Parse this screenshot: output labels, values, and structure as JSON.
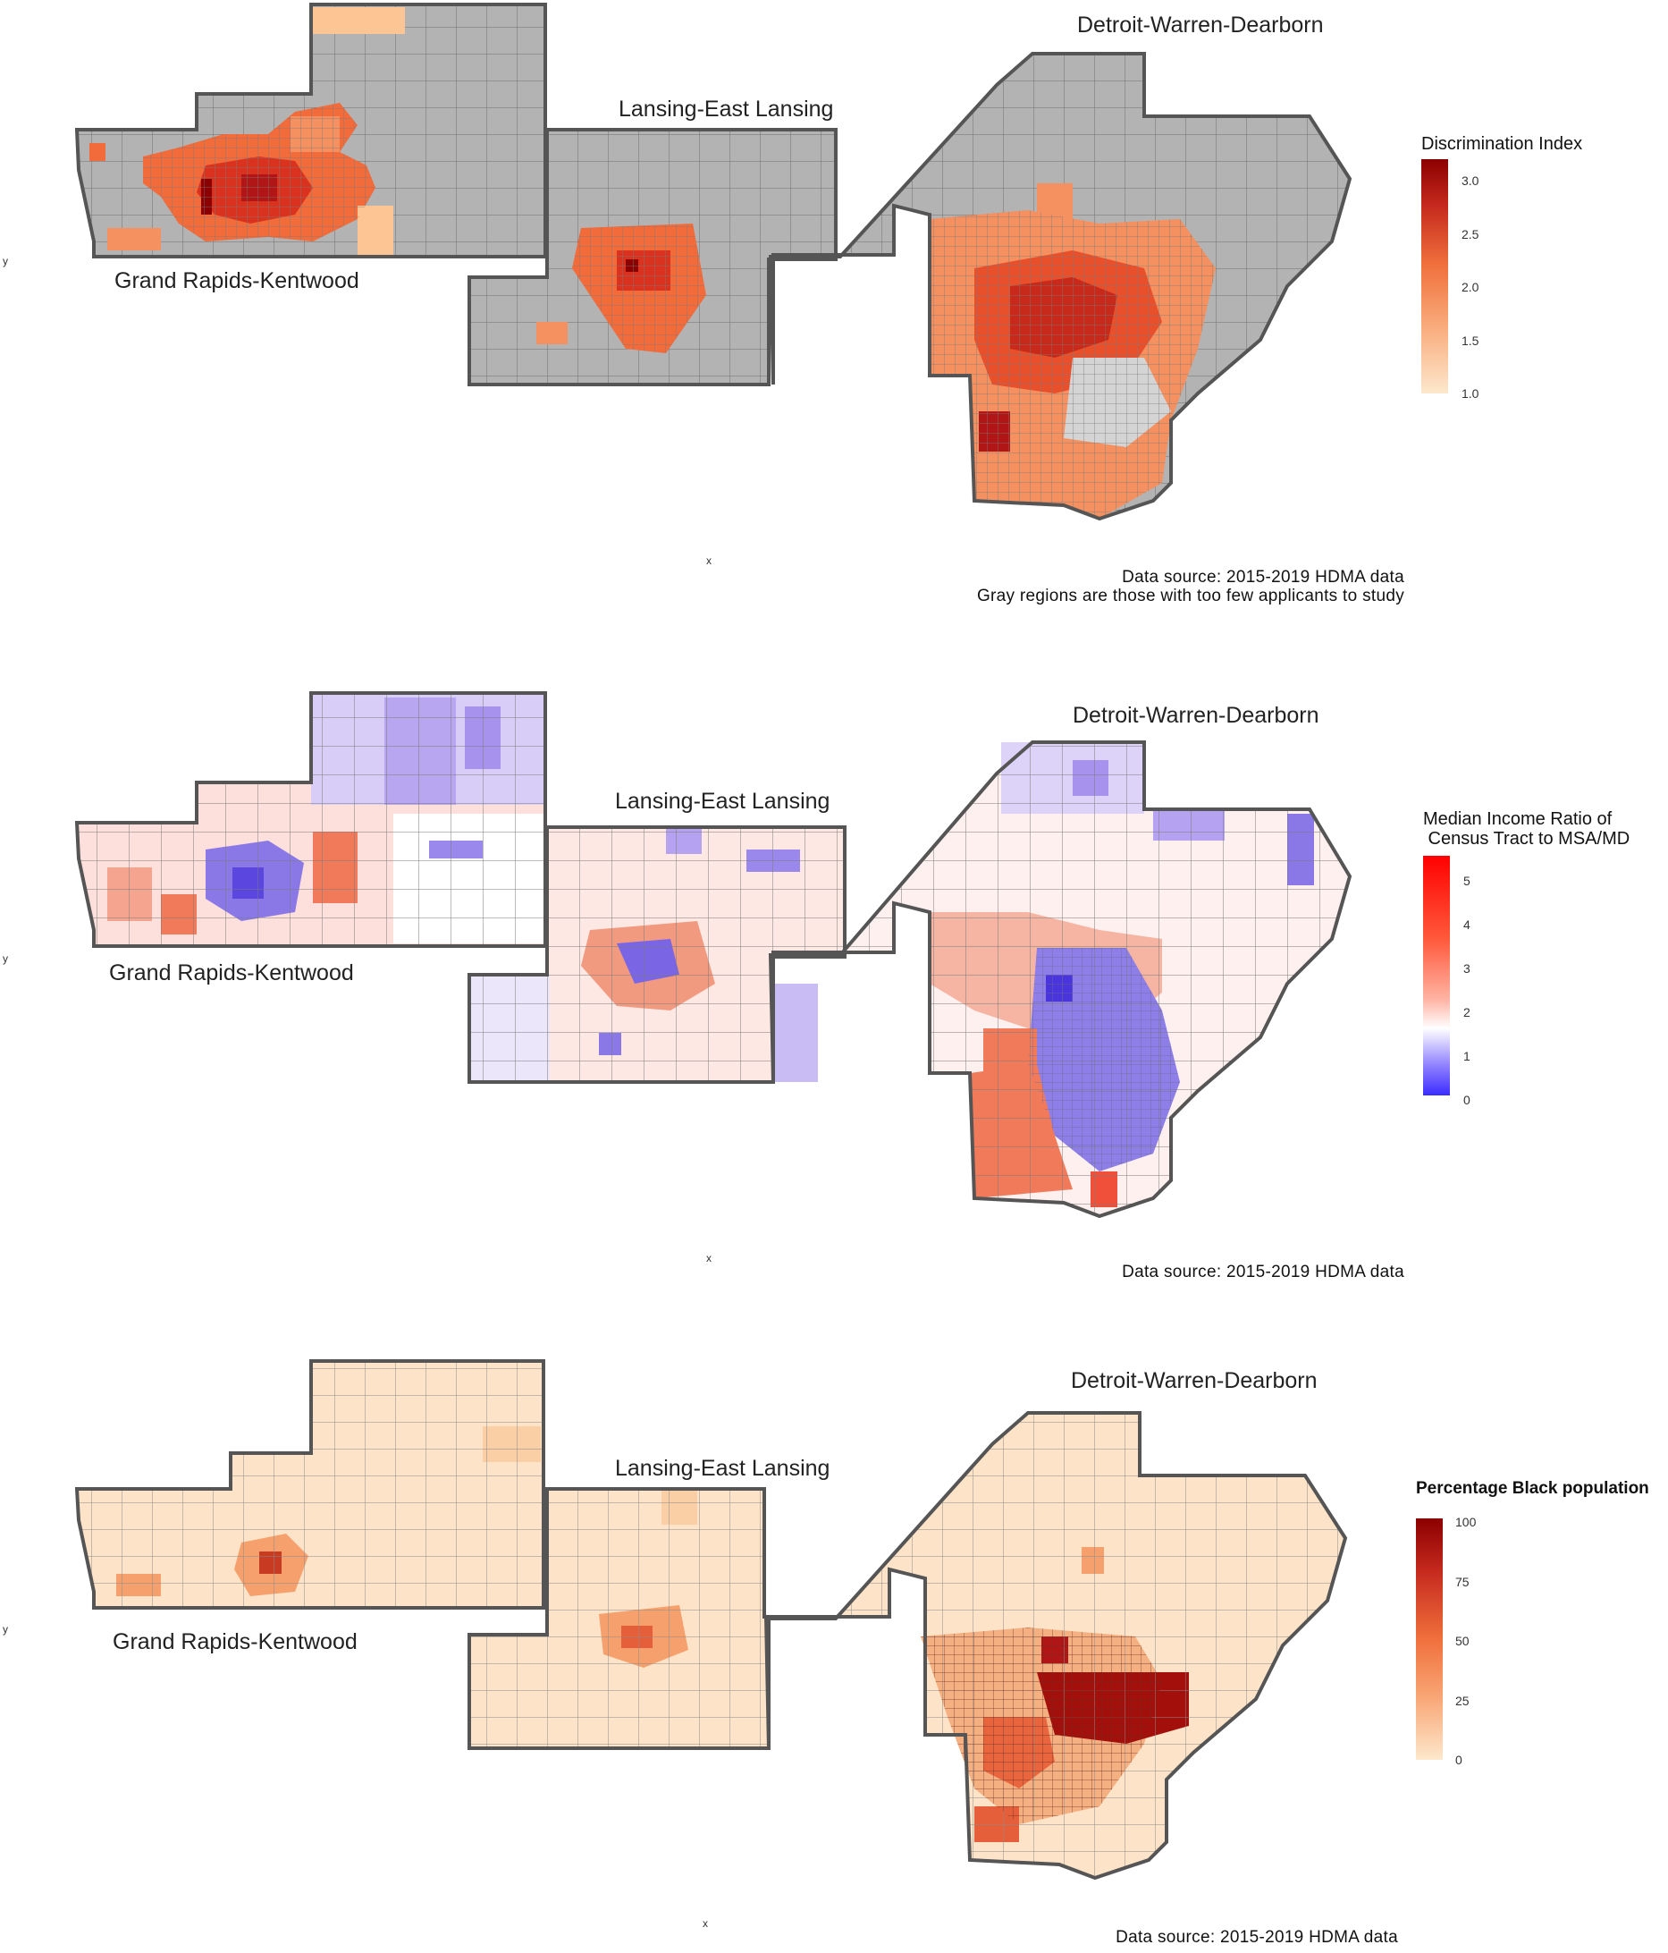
{
  "panels": [
    {
      "id": "discrimination",
      "regions": {
        "grand_rapids": "Grand Rapids-Kentwood",
        "lansing": "Lansing-East Lansing",
        "detroit": "Detroit-Warren-Dearborn"
      },
      "legend": {
        "title": "Discrimination Index",
        "ticks": [
          "3.0",
          "2.5",
          "2.0",
          "1.5",
          "1.0"
        ],
        "range": [
          1.0,
          3.2
        ],
        "colors": {
          "low": "#fde8cc",
          "mid": "#f08a4b",
          "high": "#8b0000",
          "na": "#b3b3b3"
        }
      },
      "axis": {
        "x": "x",
        "y": "y"
      },
      "source_lines": [
        "Data source: 2015-2019 HDMA data",
        "Gray regions are those with too few applicants to study"
      ]
    },
    {
      "id": "income",
      "regions": {
        "grand_rapids": "Grand Rapids-Kentwood",
        "lansing": "Lansing-East Lansing",
        "detroit": "Detroit-Warren-Dearborn"
      },
      "legend": {
        "title": "Median Income Ratio of\n Census Tract to MSA/MD",
        "ticks": [
          "5",
          "4",
          "3",
          "2",
          "1",
          "0"
        ],
        "range": [
          0,
          5.5
        ],
        "colors": {
          "low": "#3b2bff",
          "mid": "#ffffff",
          "high": "#ff0000"
        }
      },
      "axis": {
        "x": "x",
        "y": "y"
      },
      "source_lines": [
        "Data source: 2015-2019 HDMA data"
      ]
    },
    {
      "id": "black_pop",
      "regions": {
        "grand_rapids": "Grand Rapids-Kentwood",
        "lansing": "Lansing-East Lansing",
        "detroit": "Detroit-Warren-Dearborn"
      },
      "legend": {
        "title": "Percentage Black population",
        "ticks": [
          "100",
          "75",
          "50",
          "25",
          "0"
        ],
        "range": [
          0,
          100
        ],
        "colors": {
          "low": "#fde8cc",
          "mid": "#f08a4b",
          "high": "#8b0000"
        }
      },
      "axis": {
        "x": "x",
        "y": "y"
      },
      "source_lines": [
        "Data source: 2015-2019 HDMA data"
      ]
    }
  ]
}
